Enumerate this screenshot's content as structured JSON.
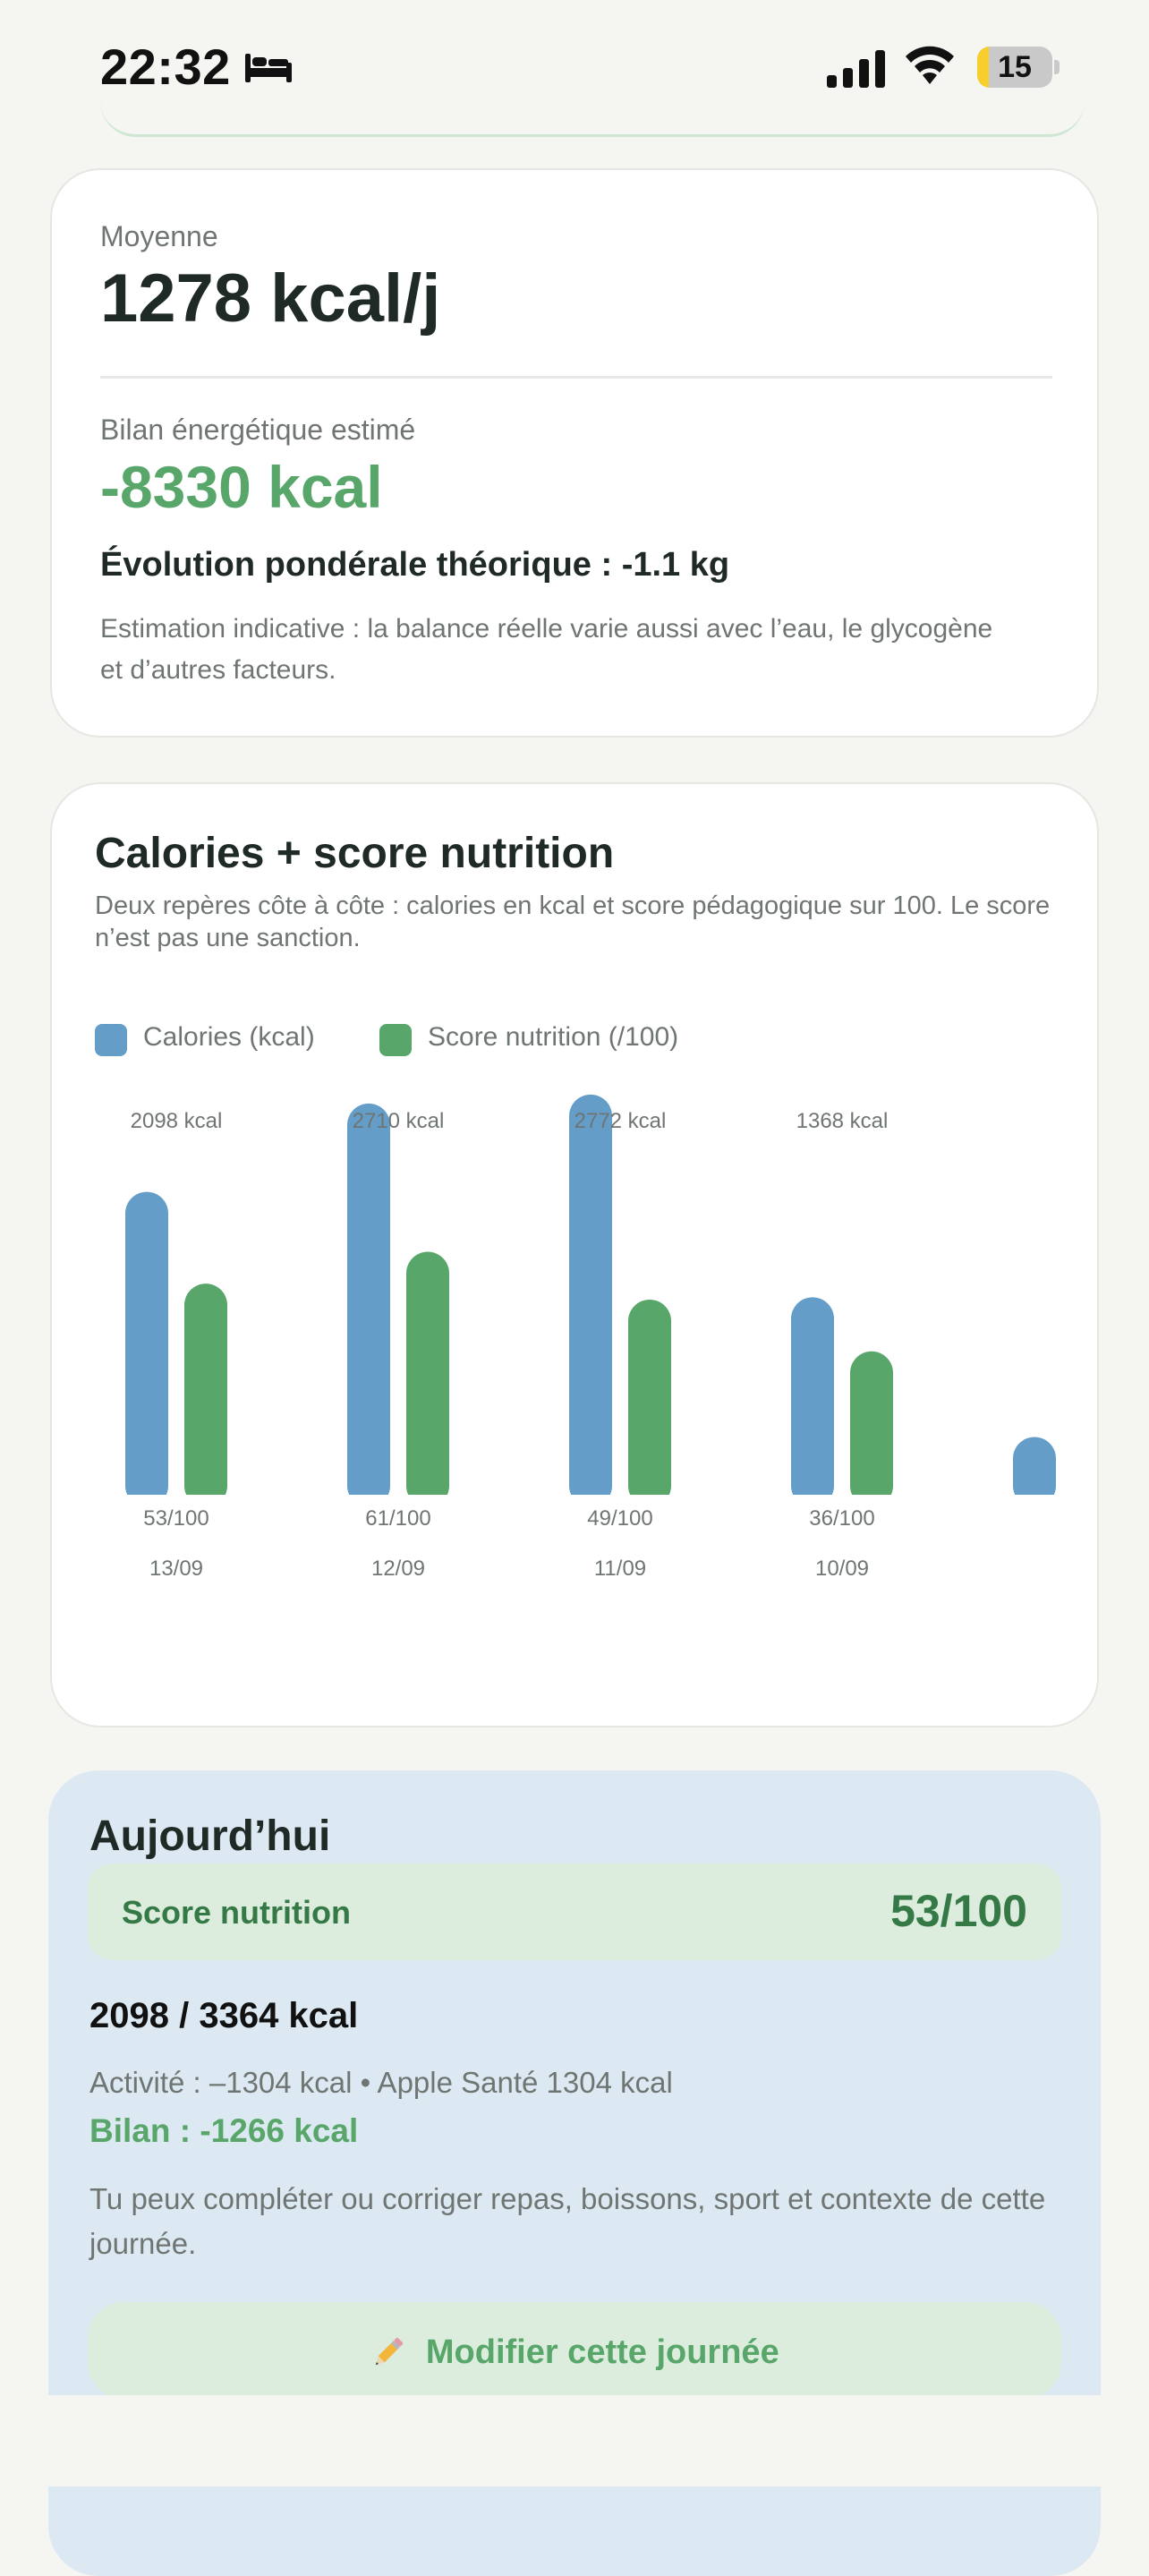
{
  "status_bar": {
    "time": "22:32",
    "focus_icon": "bed-icon",
    "battery": "15",
    "battery_level": 0.15
  },
  "summary_card": {
    "average_label": "Moyenne",
    "average_value": "1278 kcal/j",
    "bilan_label": "Bilan énergétique estimé",
    "bilan_value": "-8330 kcal",
    "evolution": "Évolution pondérale théorique : -1.1 kg",
    "note": "Estimation indicative : la balance réelle varie aussi avec l’eau, le glycogène et d’autres facteurs."
  },
  "chart_card": {
    "title": "Calories + score nutrition",
    "subtitle": "Deux repères côte à côte : calories en kcal et score pédagogique sur 100. Le score n’est pas une sanction.",
    "legend": [
      {
        "label": "Calories (kcal)",
        "color": "#659dc9"
      },
      {
        "label": "Score nutrition (/100)",
        "color": "#58a66a"
      }
    ]
  },
  "chart_data": {
    "type": "bar",
    "categories": [
      "13/09",
      "12/09",
      "11/09",
      "10/09",
      ""
    ],
    "series": [
      {
        "name": "Calories (kcal)",
        "values": [
          2098,
          2710,
          2772,
          1368,
          400
        ],
        "labels": [
          "2098 kcal",
          "2710 kcal",
          "2772 kcal",
          "1368 kcal",
          ""
        ],
        "color": "#659dc9"
      },
      {
        "name": "Score nutrition (/100)",
        "values": [
          53,
          61,
          49,
          36,
          null
        ],
        "labels": [
          "53/100",
          "61/100",
          "49/100",
          "36/100",
          ""
        ],
        "color": "#58a66a"
      }
    ]
  },
  "today_card": {
    "title": "Aujourd’hui",
    "score_label": "Score nutrition",
    "score_value": "53/100",
    "kcal": "2098 / 3364 kcal",
    "activity": "Activité : –1304 kcal • Apple Santé 1304 kcal",
    "bilan": "Bilan : -1266 kcal",
    "note": "Tu peux compléter ou corriger repas, boissons, sport et contexte de cette journée.",
    "button_icon": "pencil-icon",
    "button_label": "Modifier cette journée"
  }
}
